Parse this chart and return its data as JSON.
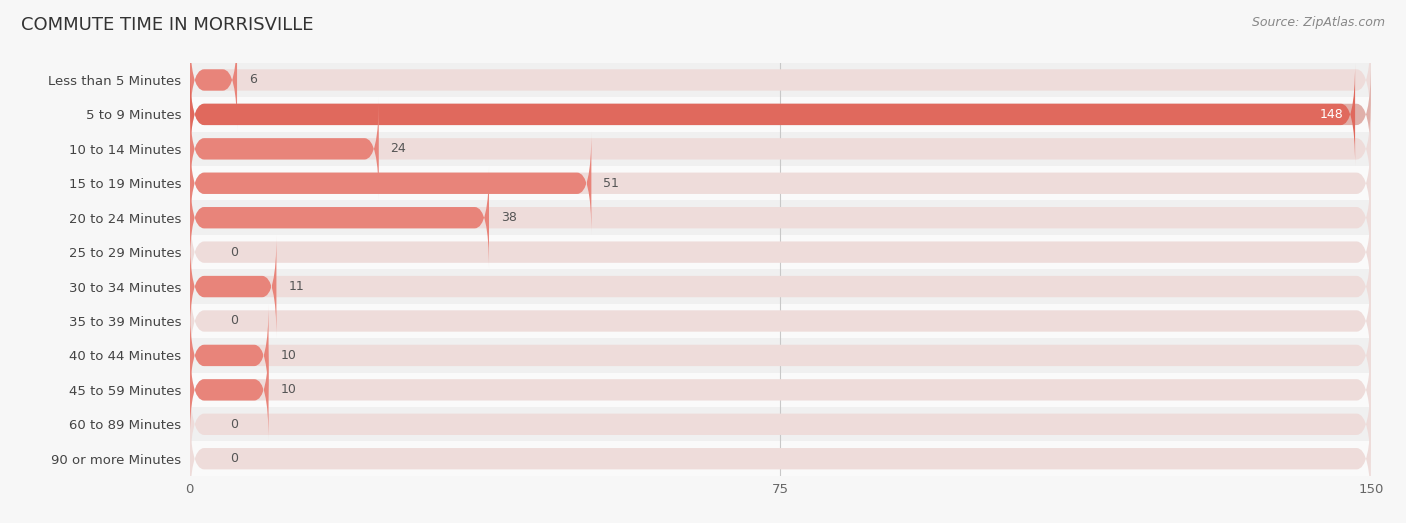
{
  "title": "COMMUTE TIME IN MORRISVILLE",
  "source": "Source: ZipAtlas.com",
  "categories": [
    "Less than 5 Minutes",
    "5 to 9 Minutes",
    "10 to 14 Minutes",
    "15 to 19 Minutes",
    "20 to 24 Minutes",
    "25 to 29 Minutes",
    "30 to 34 Minutes",
    "35 to 39 Minutes",
    "40 to 44 Minutes",
    "45 to 59 Minutes",
    "60 to 89 Minutes",
    "90 or more Minutes"
  ],
  "values": [
    6,
    148,
    24,
    51,
    38,
    0,
    11,
    0,
    10,
    10,
    0,
    0
  ],
  "bar_color_normal": "#e8847a",
  "bar_color_highlight": "#e0695d",
  "track_color_normal": "#eedcda",
  "track_color_highlight": "#e0b0aa",
  "highlight_index": 1,
  "background_color": "#f7f7f7",
  "row_colors": [
    "#f0f0f0",
    "#fafafa"
  ],
  "xlim": [
    0,
    150
  ],
  "xticks": [
    0,
    75,
    150
  ],
  "title_fontsize": 13,
  "label_fontsize": 9.5,
  "value_fontsize": 9,
  "source_fontsize": 9,
  "bar_height": 0.62
}
